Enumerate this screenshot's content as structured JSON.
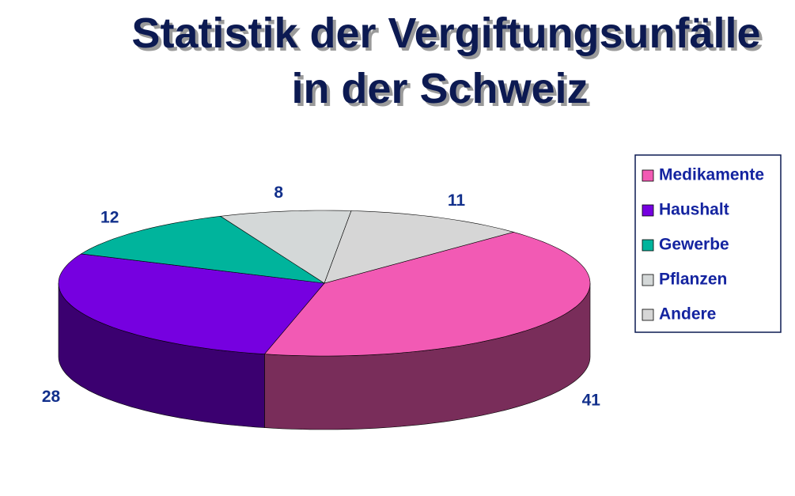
{
  "chart_data": {
    "type": "pie3d",
    "title_lines": [
      "Statistik der Vergiftungsunfälle",
      "in der Schweiz"
    ],
    "categories": [
      "Medikamente",
      "Haushalt",
      "Gewerbe",
      "Pflanzen",
      "Andere"
    ],
    "values": [
      41,
      28,
      12,
      8,
      11
    ],
    "colors": [
      "#f25ab4",
      "#7600e0",
      "#00b49c",
      "#d4d8d8",
      "#d6d6d6"
    ],
    "legend": "right"
  }
}
